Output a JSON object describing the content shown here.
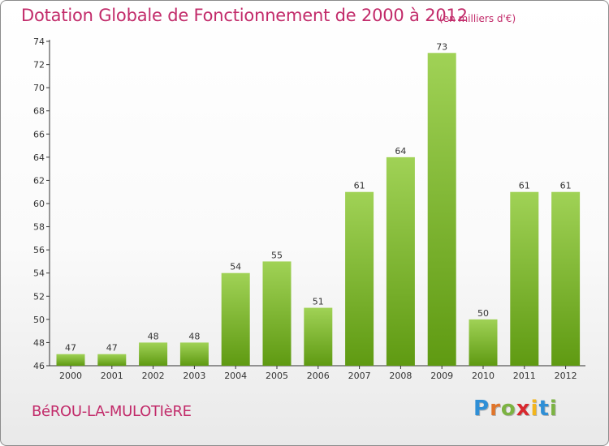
{
  "title": "Dotation Globale de Fonctionnement de 2000 à 2012",
  "subtitle": "(en milliers d'€)",
  "commune": "BéROU-LA-MULOTIèRE",
  "logo": [
    "P",
    "r",
    "o",
    "x",
    "i",
    "t",
    "i"
  ],
  "colors": {
    "title": "#c22b6a",
    "bar_light": "#a0d256",
    "bar_dark": "#5f9a12",
    "axis": "#333333"
  },
  "chart_data": {
    "type": "bar",
    "categories": [
      "2000",
      "2001",
      "2002",
      "2003",
      "2004",
      "2005",
      "2006",
      "2007",
      "2008",
      "2009",
      "2010",
      "2011",
      "2012"
    ],
    "values": [
      47,
      47,
      48,
      48,
      54,
      55,
      51,
      61,
      64,
      73,
      50,
      61,
      61
    ],
    "ylim": [
      46,
      74
    ],
    "yticks": [
      46,
      48,
      50,
      52,
      54,
      56,
      58,
      60,
      62,
      64,
      66,
      68,
      70,
      72,
      74
    ],
    "grid": false,
    "xlabel": "",
    "ylabel": ""
  }
}
